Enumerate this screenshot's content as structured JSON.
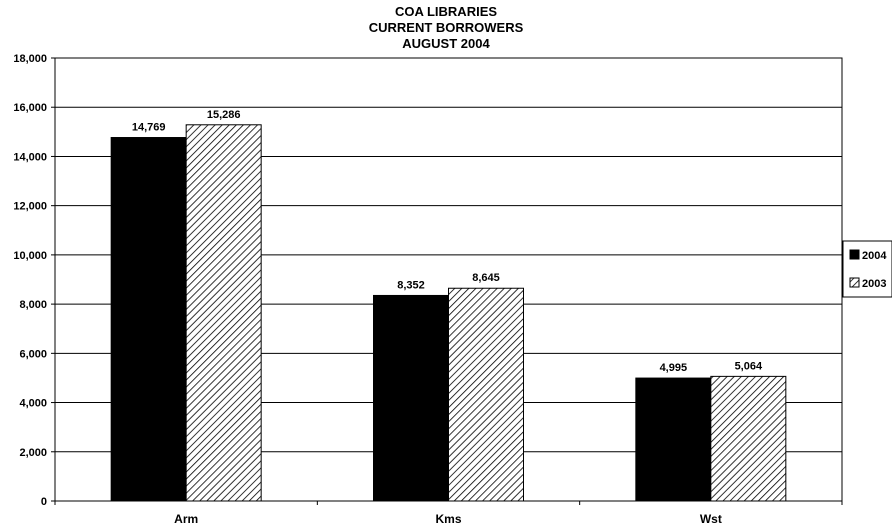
{
  "chart_data": {
    "type": "bar",
    "title": [
      "COA LIBRARIES",
      "CURRENT BORROWERS",
      "AUGUST 2004"
    ],
    "categories": [
      "Arm",
      "Kms",
      "Wst"
    ],
    "series": [
      {
        "name": "2004",
        "values": [
          14769,
          8352,
          4995
        ],
        "data_labels": [
          "14,769",
          "8,352",
          "4,995"
        ],
        "fill": "solid-black"
      },
      {
        "name": "2003",
        "values": [
          15286,
          8645,
          5064
        ],
        "data_labels": [
          "15,286",
          "8,645",
          "5,064"
        ],
        "fill": "diagonal-hatch"
      }
    ],
    "ylim": [
      0,
      18000
    ],
    "yticks": [
      0,
      2000,
      4000,
      6000,
      8000,
      10000,
      12000,
      14000,
      16000,
      18000
    ],
    "ytick_labels": [
      "0",
      "2,000",
      "4,000",
      "6,000",
      "8,000",
      "10,000",
      "12,000",
      "14,000",
      "16,000",
      "18,000"
    ],
    "grid": true,
    "legend": "right",
    "colors": {
      "bar_2004": "#000000",
      "hatch": "#000000",
      "background": "#ffffff"
    }
  }
}
